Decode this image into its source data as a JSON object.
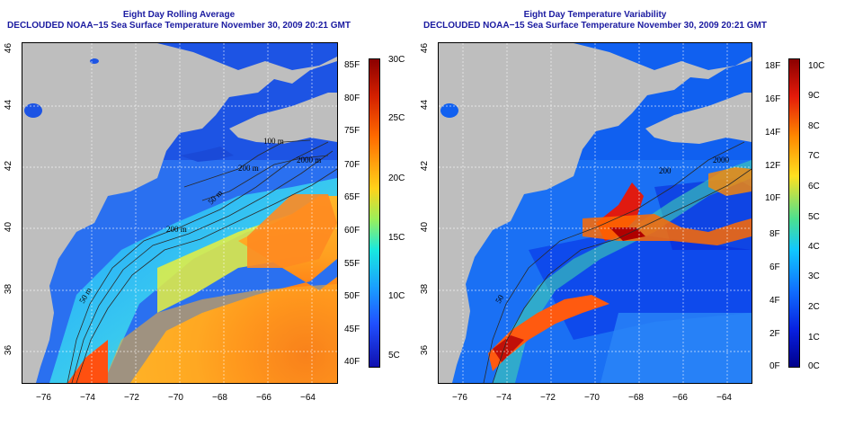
{
  "left_panel": {
    "title_line1": "Eight Day Rolling Average",
    "title_line2": "DECLOUDED NOAA−15 Sea Surface Temperature November 30, 2009 20:21 GMT",
    "colorbar_left_labels": [
      "85F",
      "80F",
      "75F",
      "70F",
      "65F",
      "60F",
      "55F",
      "50F",
      "45F",
      "40F"
    ],
    "colorbar_right_labels": [
      "30C",
      "25C",
      "20C",
      "15C",
      "10C",
      "5C"
    ],
    "contour_labels": [
      "100 m",
      "200 m",
      "2000 m",
      "200 m",
      "50 m",
      "50 m"
    ]
  },
  "right_panel": {
    "title_line1": "Eight Day Temperature Variability",
    "title_line2": "DECLOUDED NOAA−15 Sea Surface Temperature November 30, 2009 20:21 GMT",
    "colorbar_left_labels": [
      "18F",
      "16F",
      "14F",
      "12F",
      "10F",
      "8F",
      "6F",
      "4F",
      "2F",
      "0F"
    ],
    "colorbar_right_labels": [
      "10C",
      "9C",
      "8C",
      "7C",
      "6C",
      "5C",
      "4C",
      "3C",
      "2C",
      "1C",
      "0C"
    ],
    "contour_labels": [
      "2000",
      "200",
      "50"
    ]
  },
  "lat_labels": [
    "46",
    "44",
    "42",
    "40",
    "38",
    "36"
  ],
  "lon_labels": [
    "−76",
    "−74",
    "−72",
    "−70",
    "−68",
    "−66",
    "−64"
  ],
  "colors": {
    "title": "#1a1aa0",
    "land": "#bebebe",
    "sst_scale": [
      "#8b0000",
      "#d42000",
      "#ff6a00",
      "#ffd21a",
      "#9bf05a",
      "#18e8e0",
      "#1aa0ff",
      "#2050ff",
      "#1010b0"
    ],
    "variability_scale": [
      "#8b0000",
      "#e41a0a",
      "#ff8800",
      "#ffe020",
      "#4be090",
      "#10c8ff",
      "#1070ff",
      "#0820e0",
      "#00008b"
    ]
  }
}
